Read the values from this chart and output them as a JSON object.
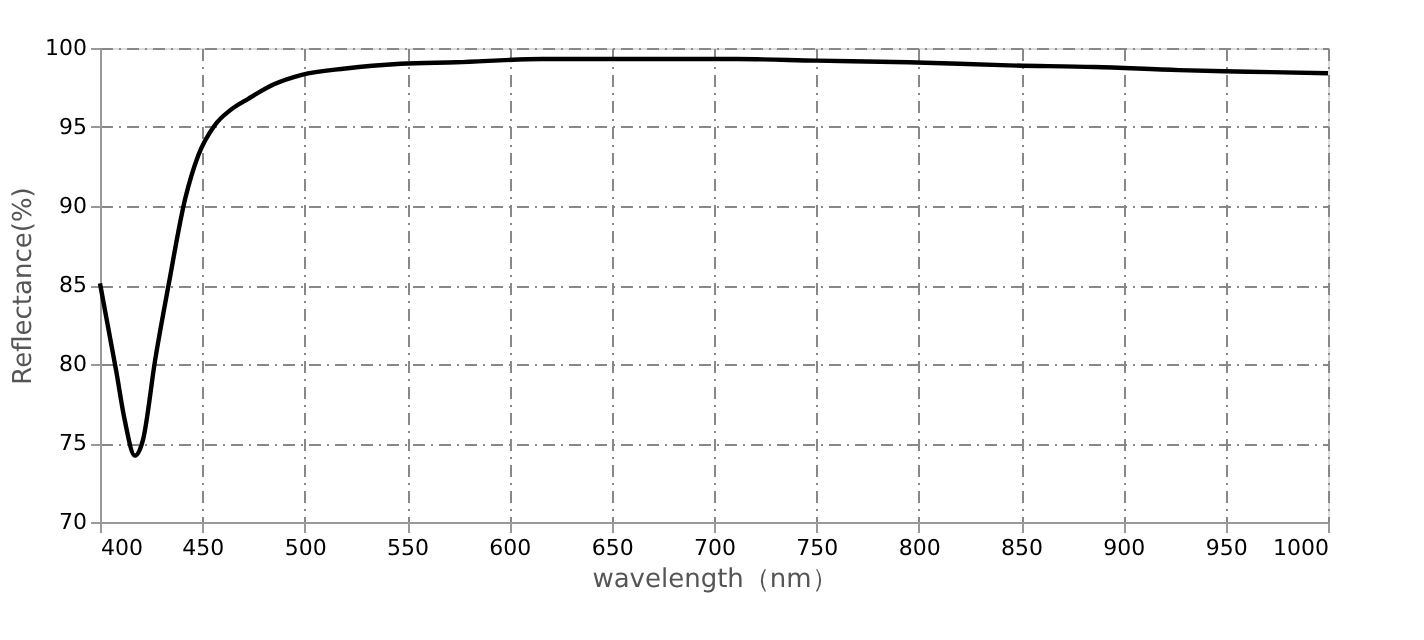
{
  "chart_data": {
    "type": "line",
    "xlabel": "wavelength（nm）",
    "ylabel": "Reflectance(%)",
    "x": [
      400,
      408,
      412,
      417,
      421,
      427,
      433.5,
      441.7,
      448,
      456,
      464,
      472.6,
      485,
      498.6,
      520,
      547,
      574,
      616,
      660,
      711,
      750,
      795,
      844,
      886,
      927,
      961,
      1000
    ],
    "series": [
      {
        "color": "#000000",
        "values": [
          85.1,
          79.5,
          76.5,
          74.2,
          75.2,
          80.3,
          85,
          90.5,
          93.2,
          95.1,
          96.1,
          96.8,
          97.7,
          98.3,
          98.7,
          99.0,
          99.1,
          99.3,
          99.3,
          99.3,
          99.2,
          99.1,
          98.9,
          98.8,
          98.6,
          98.5,
          98.4
        ]
      }
    ],
    "xlim": [
      400,
      1000
    ],
    "xticks": [
      400,
      450,
      500,
      550,
      600,
      650,
      700,
      750,
      800,
      850,
      900,
      950,
      1000
    ],
    "ylim": [
      70,
      100
    ],
    "yticks": [
      70,
      75,
      80,
      85,
      90,
      95,
      100
    ],
    "grid": true,
    "line_style": "solid",
    "marker": "none"
  }
}
